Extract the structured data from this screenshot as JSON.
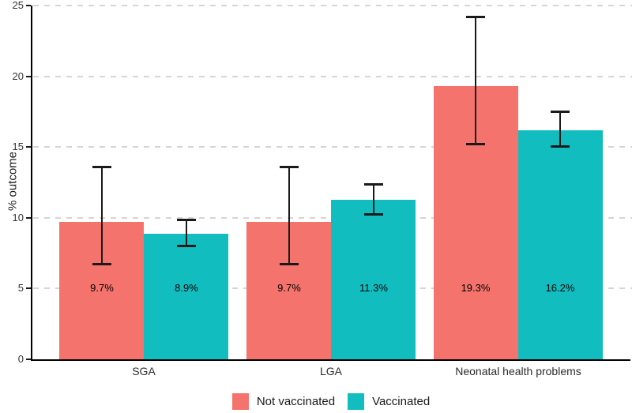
{
  "chart_data": {
    "type": "bar",
    "title": "",
    "xlabel": "",
    "ylabel": "% outcome",
    "ylim": [
      0,
      25
    ],
    "yticks": [
      0,
      5,
      10,
      15,
      20,
      25
    ],
    "grid_y": [
      5,
      10,
      15,
      20,
      25
    ],
    "grid_style": "horizontal-dashed",
    "categories": [
      "SGA",
      "LGA",
      "Neonatal health problems"
    ],
    "series": [
      {
        "name": "Not vaccinated",
        "color": "#F4736C",
        "values": [
          9.7,
          9.7,
          19.3
        ],
        "data_labels": [
          "9.7%",
          "9.7%",
          "19.3%"
        ],
        "error_low": [
          6.7,
          6.7,
          15.2
        ],
        "error_high": [
          13.6,
          13.6,
          24.2
        ]
      },
      {
        "name": "Vaccinated",
        "color": "#12BDC0",
        "values": [
          8.9,
          11.3,
          16.2
        ],
        "data_labels": [
          "8.9%",
          "11.3%",
          "16.2%"
        ],
        "error_low": [
          8.0,
          10.2,
          15.0
        ],
        "error_high": [
          9.9,
          12.4,
          17.5
        ]
      }
    ],
    "value_label_y": 5,
    "legend": {
      "position": "bottom",
      "entries": [
        "Not vaccinated",
        "Vaccinated"
      ]
    },
    "colors": {
      "grid": "#D5D5D5",
      "axis": "#000000",
      "tick_text": "#333333",
      "label_text": "#000000"
    }
  }
}
